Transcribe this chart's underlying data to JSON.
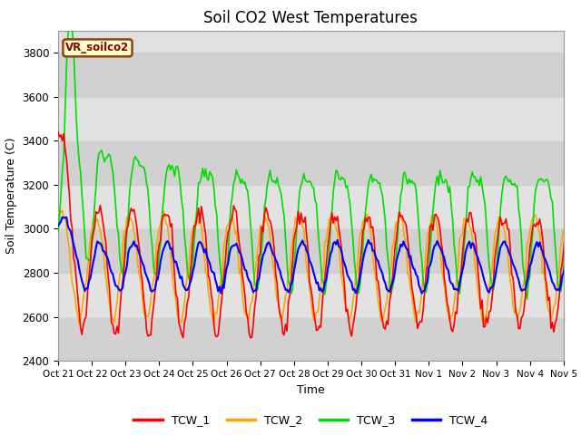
{
  "title": "Soil CO2 West Temperatures",
  "xlabel": "Time",
  "ylabel": "Soil Temperature (C)",
  "ylim": [
    2400,
    3900
  ],
  "bg_color": "#e0e0e0",
  "fig_color": "#ffffff",
  "annotation_text": "VR_soilco2",
  "x_tick_labels": [
    "Oct 21",
    "Oct 22",
    "Oct 23",
    "Oct 24",
    "Oct 25",
    "Oct 26",
    "Oct 27",
    "Oct 28",
    "Oct 29",
    "Oct 30",
    "Oct 31",
    "Nov 1",
    "Nov 2",
    "Nov 3",
    "Nov 4",
    "Nov 5"
  ],
  "legend_labels": [
    "TCW_1",
    "TCW_2",
    "TCW_3",
    "TCW_4"
  ],
  "line_colors": [
    "#ff0000",
    "#ffa500",
    "#00dd00",
    "#0000ff"
  ],
  "y_ticks": [
    2400,
    2600,
    2800,
    3000,
    3200,
    3400,
    3600,
    3800
  ],
  "band_colors": [
    "#d8d8d8",
    "#e8e8e8"
  ]
}
